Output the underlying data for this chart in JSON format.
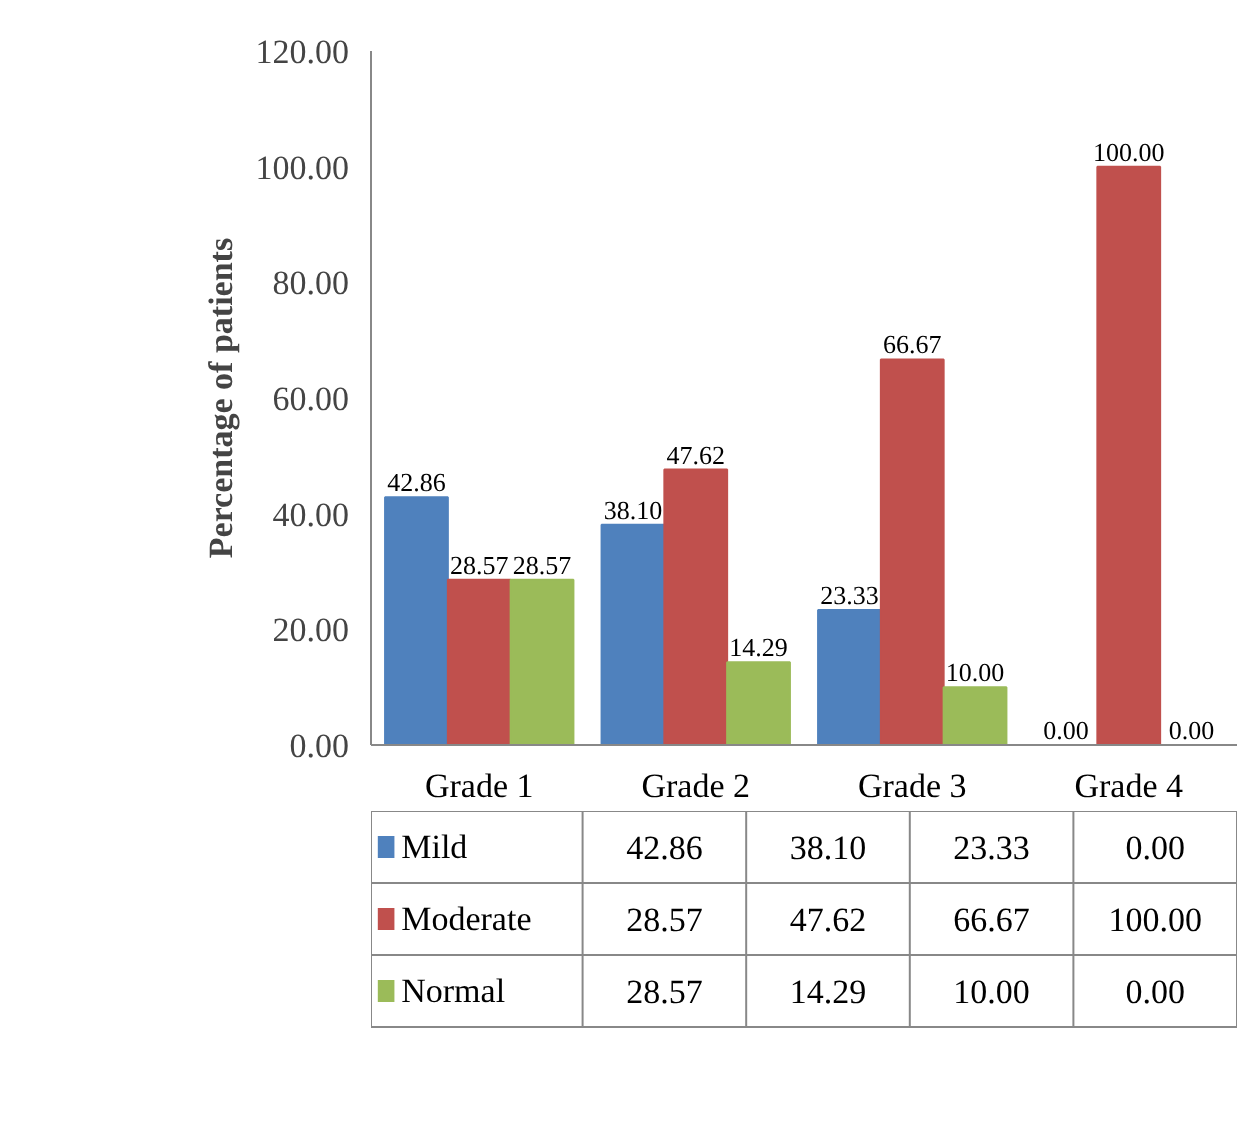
{
  "chart_data": {
    "type": "bar",
    "ylabel": "Percentage of patients",
    "categories": [
      "Grade 1",
      "Grade 2",
      "Grade 3",
      "Grade 4"
    ],
    "series": [
      {
        "name": "Mild",
        "color": "#4f81bd",
        "values": [
          42.86,
          38.1,
          23.33,
          0.0
        ],
        "value_labels": [
          "42.86",
          "38.10",
          "23.33",
          "0.00"
        ]
      },
      {
        "name": "Moderate",
        "color": "#c0504d",
        "values": [
          28.57,
          47.62,
          66.67,
          100.0
        ],
        "value_labels": [
          "28.57",
          "47.62",
          "66.67",
          "100.00"
        ]
      },
      {
        "name": "Normal",
        "color": "#9bbb59",
        "values": [
          28.57,
          14.29,
          10.0,
          0.0
        ],
        "value_labels": [
          "28.57",
          "14.29",
          "10.00",
          "0.00"
        ]
      }
    ],
    "ylim": [
      0,
      120
    ],
    "yticks": [
      {
        "value": 0,
        "label": "0.00"
      },
      {
        "value": 20,
        "label": "20.00"
      },
      {
        "value": 40,
        "label": "40.00"
      },
      {
        "value": 60,
        "label": "60.00"
      },
      {
        "value": 80,
        "label": "80.00"
      },
      {
        "value": 100,
        "label": "100.00"
      },
      {
        "value": 120,
        "label": "120.00"
      }
    ],
    "grid": false,
    "legend": "bottom"
  }
}
